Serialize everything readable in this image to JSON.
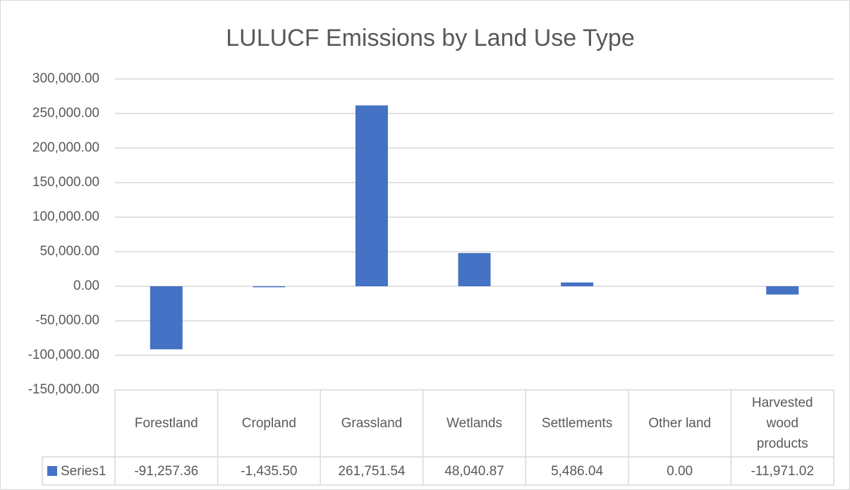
{
  "chart_data": {
    "type": "bar",
    "title": "LULUCF Emissions by Land Use Type",
    "categories": [
      "Forestland",
      "Cropland",
      "Grassland",
      "Wetlands",
      "Settlements",
      "Other land",
      "Harvested wood products"
    ],
    "series": [
      {
        "name": "Series1",
        "color": "#4472c4",
        "values": [
          -91257.36,
          -1435.5,
          261751.54,
          48040.87,
          5486.04,
          0.0,
          -11971.02
        ],
        "value_labels": [
          "-91,257.36",
          "-1,435.50",
          "261,751.54",
          "48,040.87",
          "5,486.04",
          "0.00",
          "-11,971.02"
        ]
      }
    ],
    "ylim": [
      -150000,
      300000
    ],
    "yticks": [
      {
        "value": -150000,
        "label": "-150,000.00"
      },
      {
        "value": -100000,
        "label": "-100,000.00"
      },
      {
        "value": -50000,
        "label": "-50,000.00"
      },
      {
        "value": 0,
        "label": "0.00"
      },
      {
        "value": 50000,
        "label": "50,000.00"
      },
      {
        "value": 100000,
        "label": "100,000.00"
      },
      {
        "value": 150000,
        "label": "150,000.00"
      },
      {
        "value": 200000,
        "label": "200,000.00"
      },
      {
        "value": 250000,
        "label": "250,000.00"
      },
      {
        "value": 300000,
        "label": "300,000.00"
      }
    ],
    "grid": true,
    "data_table": true
  }
}
